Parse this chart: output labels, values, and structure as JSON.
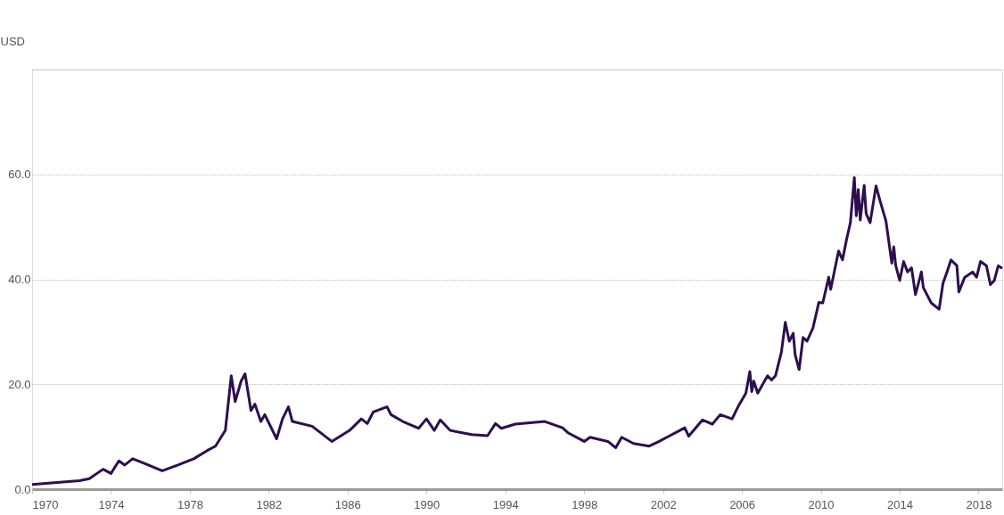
{
  "chart_data": {
    "type": "line",
    "ylabel": "USD",
    "x": [
      1970.0,
      1972.4,
      1972.9,
      1973.6,
      1974.0,
      1974.4,
      1974.7,
      1975.1,
      1975.7,
      1976.6,
      1977.4,
      1978.2,
      1978.9,
      1979.3,
      1979.8,
      1980.1,
      1980.3,
      1980.6,
      1980.8,
      1981.1,
      1981.3,
      1981.6,
      1981.8,
      1982.4,
      1982.7,
      1983.0,
      1983.2,
      1984.2,
      1985.2,
      1986.1,
      1986.7,
      1987.0,
      1987.3,
      1988.0,
      1988.2,
      1988.8,
      1989.6,
      1990.0,
      1990.4,
      1990.7,
      1991.2,
      1992.3,
      1993.1,
      1993.5,
      1993.8,
      1994.5,
      1996.0,
      1996.9,
      1997.2,
      1998.0,
      1998.3,
      1999.2,
      1999.6,
      1999.9,
      2000.5,
      2001.3,
      2001.8,
      2002.3,
      2003.1,
      2003.3,
      2004.0,
      2004.5,
      2004.9,
      2005.5,
      2005.8,
      2006.2,
      2006.4,
      2006.5,
      2006.6,
      2006.8,
      2007.3,
      2007.5,
      2007.7,
      2008.0,
      2008.2,
      2008.4,
      2008.6,
      2008.7,
      2008.9,
      2009.1,
      2009.3,
      2009.6,
      2009.9,
      2010.1,
      2010.4,
      2010.5,
      2010.9,
      2011.1,
      2011.3,
      2011.5,
      2011.7,
      2011.8,
      2011.9,
      2012.0,
      2012.2,
      2012.3,
      2012.5,
      2012.8,
      2013.0,
      2013.3,
      2013.6,
      2013.7,
      2013.8,
      2014.0,
      2014.2,
      2014.4,
      2014.6,
      2014.8,
      2015.1,
      2015.2,
      2015.6,
      2016.0,
      2016.2,
      2016.4,
      2016.6,
      2016.9,
      2017.0,
      2017.3,
      2017.7,
      2017.9,
      2018.1,
      2018.4,
      2018.6,
      2018.8,
      2019.0,
      2019.2
    ],
    "series": [
      {
        "color": "#2d0e4e",
        "values": [
          0.9,
          1.6,
          2.0,
          3.8,
          3.0,
          5.4,
          4.6,
          5.8,
          4.9,
          3.5,
          4.6,
          5.8,
          7.4,
          8.2,
          11.2,
          21.6,
          16.7,
          20.6,
          22.0,
          15.0,
          16.2,
          12.9,
          14.2,
          9.6,
          13.4,
          15.7,
          12.9,
          12.0,
          9.1,
          11.2,
          13.4,
          12.5,
          14.7,
          15.7,
          14.2,
          12.9,
          11.6,
          13.4,
          11.2,
          13.2,
          11.2,
          10.4,
          10.2,
          12.5,
          11.6,
          12.4,
          12.9,
          11.7,
          10.7,
          9.1,
          9.9,
          9.1,
          7.9,
          9.9,
          8.7,
          8.2,
          9.1,
          10.1,
          11.7,
          10.1,
          13.2,
          12.4,
          14.2,
          13.4,
          15.7,
          18.3,
          22.4,
          18.6,
          20.6,
          18.3,
          21.6,
          20.8,
          21.6,
          26.1,
          31.8,
          28.2,
          29.7,
          25.6,
          22.8,
          28.9,
          28.2,
          30.7,
          35.6,
          35.5,
          40.4,
          38.1,
          45.4,
          43.7,
          47.5,
          50.8,
          59.4,
          52.1,
          57.1,
          51.3,
          57.9,
          52.5,
          50.8,
          57.8,
          55.0,
          51.2,
          43.1,
          46.2,
          42.6,
          39.8,
          43.4,
          41.4,
          42.2,
          37.1,
          41.4,
          38.4,
          35.5,
          34.3,
          39.3,
          41.4,
          43.7,
          42.6,
          37.6,
          40.4,
          41.4,
          40.4,
          43.4,
          42.6,
          39.0,
          39.8,
          42.6,
          42.1
        ]
      }
    ],
    "xlim": [
      1970,
      2019.2
    ],
    "xticks": [
      1970,
      1974,
      1978,
      1982,
      1986,
      1990,
      1994,
      1998,
      2002,
      2006,
      2010,
      2014,
      2018
    ],
    "ylim": [
      0,
      80
    ],
    "yticks": [
      {
        "value": 0,
        "label": "0.0"
      },
      {
        "value": 20,
        "label": "20.0"
      },
      {
        "value": 40,
        "label": "40.0"
      },
      {
        "value": 60,
        "label": "60.0"
      },
      {
        "value": 80,
        "label": null
      }
    ],
    "grid": "y",
    "marker": "none",
    "line_style": "solid"
  }
}
